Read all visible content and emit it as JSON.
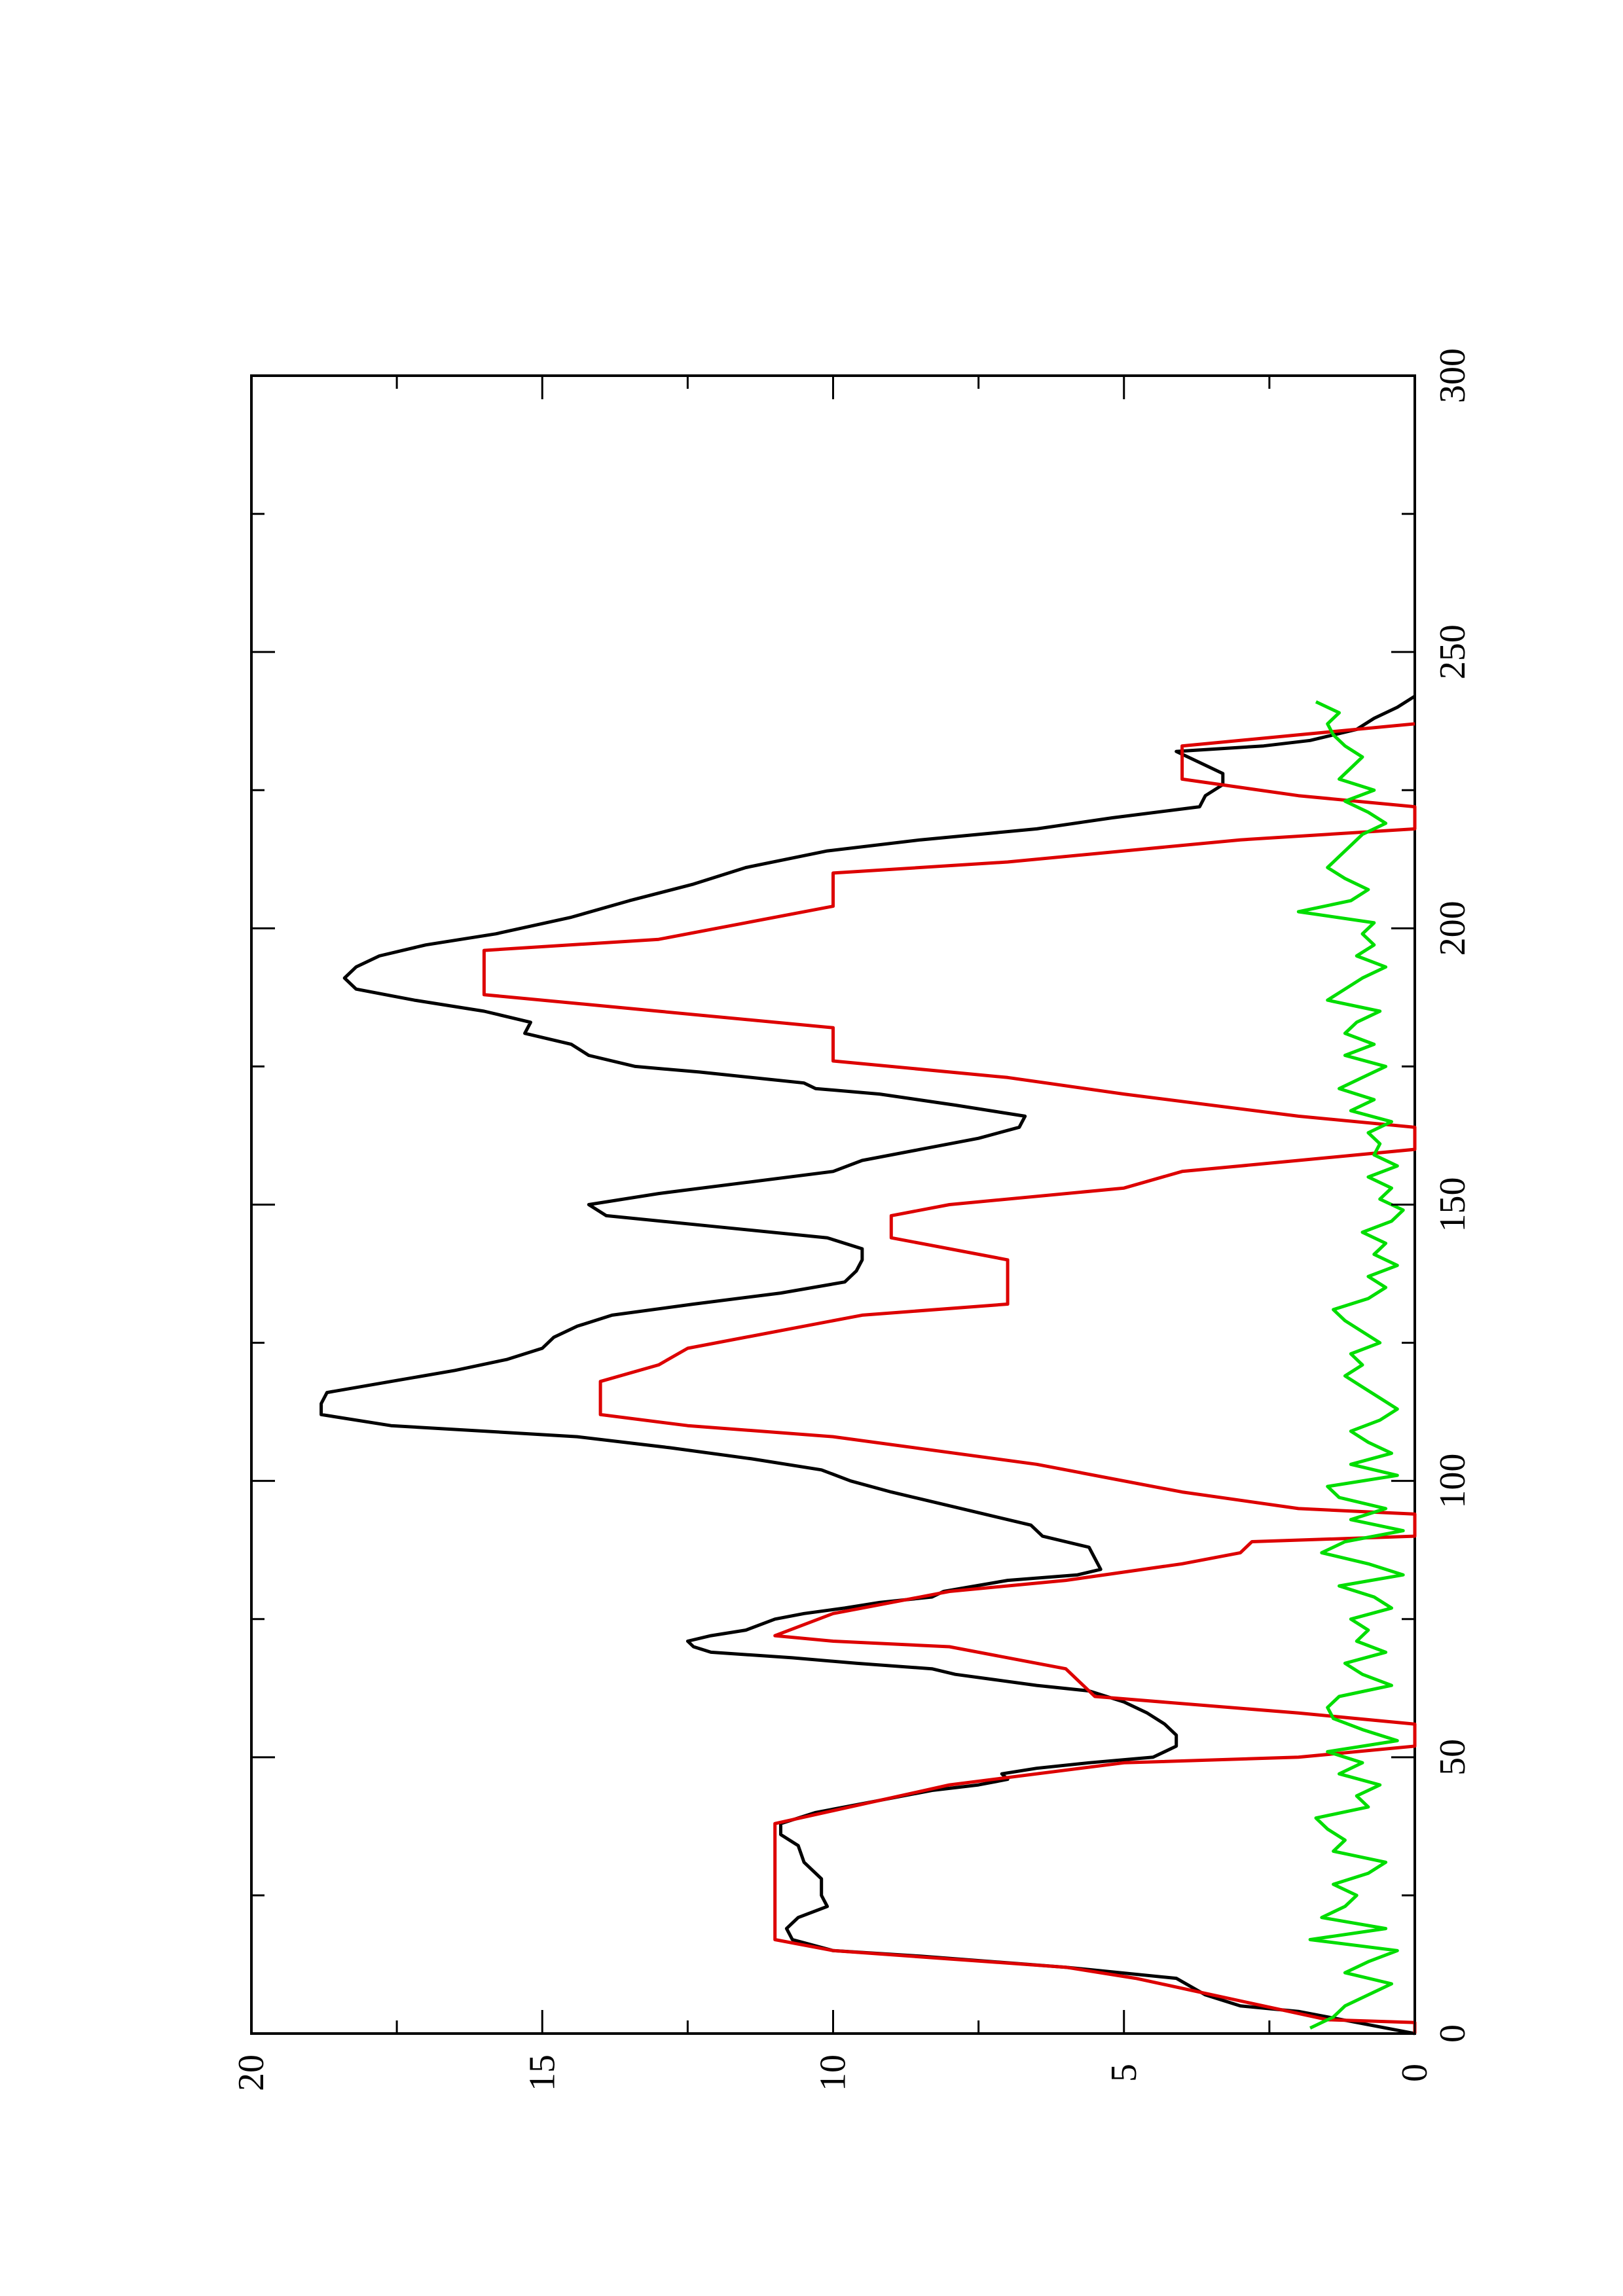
{
  "chart_data": {
    "type": "line",
    "orientation": "rotated-90-ccw",
    "title": "",
    "xlabel": "",
    "ylabel": "",
    "xlim": [
      0,
      300
    ],
    "ylim": [
      0,
      20
    ],
    "xticks": [
      0,
      50,
      100,
      150,
      200,
      250,
      300
    ],
    "yticks": [
      0,
      5,
      10,
      15,
      20
    ],
    "grid": false,
    "series": [
      {
        "color": "#000000",
        "points": [
          [
            0,
            0
          ],
          [
            2,
            1
          ],
          [
            4,
            2
          ],
          [
            5,
            3
          ],
          [
            7,
            3.6
          ],
          [
            10,
            4.1
          ],
          [
            12,
            6
          ],
          [
            14,
            8.5
          ],
          [
            15,
            10
          ],
          [
            17,
            10.7
          ],
          [
            19,
            10.8
          ],
          [
            21,
            10.6
          ],
          [
            23,
            10.1
          ],
          [
            25,
            10.2
          ],
          [
            28,
            10.2
          ],
          [
            31,
            10.5
          ],
          [
            34,
            10.6
          ],
          [
            36,
            10.9
          ],
          [
            38,
            10.9
          ],
          [
            40,
            10.3
          ],
          [
            42,
            9.3
          ],
          [
            44,
            8.3
          ],
          [
            45,
            7.5
          ],
          [
            46,
            7
          ],
          [
            47,
            7.1
          ],
          [
            48,
            6.5
          ],
          [
            49,
            5.6
          ],
          [
            50,
            4.5
          ],
          [
            52,
            4.1
          ],
          [
            54,
            4.1
          ],
          [
            56,
            4.3
          ],
          [
            58,
            4.6
          ],
          [
            60,
            5
          ],
          [
            62,
            5.6
          ],
          [
            63,
            6.5
          ],
          [
            64,
            7.2
          ],
          [
            65,
            7.9
          ],
          [
            66,
            8.3
          ],
          [
            67,
            9.6
          ],
          [
            68,
            10.7
          ],
          [
            69,
            12.1
          ],
          [
            70,
            12.4
          ],
          [
            71,
            12.5
          ],
          [
            72,
            12.1
          ],
          [
            73,
            11.5
          ],
          [
            75,
            11
          ],
          [
            76,
            10.5
          ],
          [
            77,
            9.8
          ],
          [
            78,
            9.2
          ],
          [
            79,
            8.3
          ],
          [
            80,
            8.1
          ],
          [
            82,
            7
          ],
          [
            83,
            5.8
          ],
          [
            84,
            5.4
          ],
          [
            86,
            5.5
          ],
          [
            88,
            5.6
          ],
          [
            90,
            6.4
          ],
          [
            92,
            6.6
          ],
          [
            94,
            7.4
          ],
          [
            96,
            8.2
          ],
          [
            98,
            9
          ],
          [
            100,
            9.7
          ],
          [
            102,
            10.2
          ],
          [
            104,
            11.4
          ],
          [
            106,
            12.8
          ],
          [
            108,
            14.4
          ],
          [
            110,
            17.6
          ],
          [
            112,
            18.8
          ],
          [
            114,
            18.8
          ],
          [
            116,
            18.7
          ],
          [
            118,
            17.6
          ],
          [
            120,
            16.5
          ],
          [
            122,
            15.6
          ],
          [
            124,
            15
          ],
          [
            126,
            14.8
          ],
          [
            128,
            14.4
          ],
          [
            130,
            13.8
          ],
          [
            132,
            12.4
          ],
          [
            134,
            10.9
          ],
          [
            136,
            9.8
          ],
          [
            138,
            9.6
          ],
          [
            140,
            9.5
          ],
          [
            142,
            9.5
          ],
          [
            144,
            10.1
          ],
          [
            146,
            12
          ],
          [
            148,
            13.9
          ],
          [
            150,
            14.2
          ],
          [
            152,
            13
          ],
          [
            154,
            11.5
          ],
          [
            156,
            10
          ],
          [
            158,
            9.5
          ],
          [
            160,
            8.5
          ],
          [
            162,
            7.5
          ],
          [
            164,
            6.8
          ],
          [
            166,
            6.7
          ],
          [
            168,
            7.9
          ],
          [
            170,
            9.2
          ],
          [
            171,
            10.3
          ],
          [
            172,
            10.5
          ],
          [
            174,
            12.3
          ],
          [
            175,
            13.4
          ],
          [
            177,
            14.2
          ],
          [
            179,
            14.5
          ],
          [
            181,
            15.3
          ],
          [
            183,
            15.2
          ],
          [
            185,
            16
          ],
          [
            187,
            17.2
          ],
          [
            189,
            18.2
          ],
          [
            191,
            18.4
          ],
          [
            193,
            18.2
          ],
          [
            195,
            17.8
          ],
          [
            197,
            17
          ],
          [
            199,
            15.8
          ],
          [
            202,
            14.5
          ],
          [
            205,
            13.5
          ],
          [
            208,
            12.4
          ],
          [
            211,
            11.5
          ],
          [
            214,
            10.1
          ],
          [
            216,
            8.5
          ],
          [
            218,
            6.5
          ],
          [
            220,
            5.2
          ],
          [
            222,
            3.7
          ],
          [
            224,
            3.6
          ],
          [
            226,
            3.3
          ],
          [
            228,
            3.3
          ],
          [
            230,
            3.7
          ],
          [
            232,
            4.1
          ],
          [
            233,
            2.6
          ],
          [
            234,
            1.8
          ],
          [
            236,
            1
          ],
          [
            238,
            0.7
          ],
          [
            240,
            0.3
          ],
          [
            242,
            0
          ]
        ]
      },
      {
        "color": "#dd0000",
        "points": [
          [
            0,
            0
          ],
          [
            2,
            0
          ],
          [
            2.5,
            1.5
          ],
          [
            10,
            4.8
          ],
          [
            12,
            6
          ],
          [
            15,
            10
          ],
          [
            17,
            11
          ],
          [
            36,
            11
          ],
          [
            38,
            11
          ],
          [
            45,
            8
          ],
          [
            49,
            5
          ],
          [
            50,
            2
          ],
          [
            52,
            0
          ],
          [
            56,
            0
          ],
          [
            58,
            2
          ],
          [
            61,
            5.5
          ],
          [
            66,
            6
          ],
          [
            70,
            8
          ],
          [
            71,
            10
          ],
          [
            72,
            11
          ],
          [
            76,
            10
          ],
          [
            77,
            9.5
          ],
          [
            80,
            8
          ],
          [
            82,
            6
          ],
          [
            85,
            4
          ],
          [
            87,
            3
          ],
          [
            89,
            2.8
          ],
          [
            90,
            0
          ],
          [
            94,
            0
          ],
          [
            95,
            2
          ],
          [
            98,
            4
          ],
          [
            103,
            6.5
          ],
          [
            108,
            10
          ],
          [
            110,
            12.5
          ],
          [
            112,
            14
          ],
          [
            118,
            14
          ],
          [
            121,
            13
          ],
          [
            124,
            12.5
          ],
          [
            130,
            9.5
          ],
          [
            132,
            7
          ],
          [
            140,
            7
          ],
          [
            142,
            8
          ],
          [
            144,
            9
          ],
          [
            148,
            9
          ],
          [
            150,
            8
          ],
          [
            153,
            5
          ],
          [
            156,
            4
          ],
          [
            158,
            2
          ],
          [
            160,
            0
          ],
          [
            164,
            0
          ],
          [
            166,
            2
          ],
          [
            170,
            5
          ],
          [
            173,
            7
          ],
          [
            176,
            10
          ],
          [
            182,
            10
          ],
          [
            185,
            13
          ],
          [
            188,
            16
          ],
          [
            196,
            16
          ],
          [
            198,
            13
          ],
          [
            201,
            11.5
          ],
          [
            204,
            10
          ],
          [
            210,
            10
          ],
          [
            212,
            7
          ],
          [
            214,
            5
          ],
          [
            216,
            3
          ],
          [
            218,
            0
          ],
          [
            222,
            0
          ],
          [
            224,
            2
          ],
          [
            227,
            4
          ],
          [
            233,
            4
          ],
          [
            235,
            2
          ],
          [
            237,
            0
          ]
        ]
      },
      {
        "color": "#00dd00",
        "points": [
          [
            1,
            1.8
          ],
          [
            3,
            1.4
          ],
          [
            5,
            1.2
          ],
          [
            7,
            0.8
          ],
          [
            9,
            0.4
          ],
          [
            11,
            1.2
          ],
          [
            13,
            0.8
          ],
          [
            15,
            0.3
          ],
          [
            17,
            1.8
          ],
          [
            19,
            0.5
          ],
          [
            21,
            1.6
          ],
          [
            23,
            1.2
          ],
          [
            25,
            1
          ],
          [
            27,
            1.4
          ],
          [
            29,
            0.8
          ],
          [
            31,
            0.5
          ],
          [
            33,
            1.4
          ],
          [
            35,
            1.2
          ],
          [
            37,
            1.5
          ],
          [
            39,
            1.7
          ],
          [
            41,
            0.8
          ],
          [
            43,
            1
          ],
          [
            45,
            0.6
          ],
          [
            47,
            1.3
          ],
          [
            49,
            0.9
          ],
          [
            51,
            1.5
          ],
          [
            53,
            0.3
          ],
          [
            55,
            0.9
          ],
          [
            57,
            1.4
          ],
          [
            59,
            1.5
          ],
          [
            61,
            1.3
          ],
          [
            63,
            0.4
          ],
          [
            65,
            0.9
          ],
          [
            67,
            1.2
          ],
          [
            69,
            0.5
          ],
          [
            71,
            1
          ],
          [
            73,
            0.8
          ],
          [
            75,
            1.1
          ],
          [
            77,
            0.4
          ],
          [
            79,
            0.7
          ],
          [
            81,
            1.3
          ],
          [
            83,
            0.2
          ],
          [
            85,
            0.8
          ],
          [
            87,
            1.6
          ],
          [
            89,
            1.2
          ],
          [
            91,
            0.2
          ],
          [
            93,
            1.1
          ],
          [
            95,
            0.5
          ],
          [
            97,
            1.3
          ],
          [
            99,
            1.5
          ],
          [
            101,
            0.3
          ],
          [
            103,
            1.1
          ],
          [
            105,
            0.4
          ],
          [
            107,
            0.8
          ],
          [
            109,
            1.1
          ],
          [
            111,
            0.6
          ],
          [
            113,
            0.3
          ],
          [
            115,
            0.6
          ],
          [
            117,
            0.9
          ],
          [
            119,
            1.2
          ],
          [
            121,
            0.9
          ],
          [
            123,
            1.1
          ],
          [
            125,
            0.6
          ],
          [
            127,
            0.9
          ],
          [
            129,
            1.2
          ],
          [
            131,
            1.4
          ],
          [
            133,
            0.8
          ],
          [
            135,
            0.5
          ],
          [
            137,
            0.8
          ],
          [
            139,
            0.3
          ],
          [
            141,
            0.7
          ],
          [
            143,
            0.5
          ],
          [
            145,
            0.9
          ],
          [
            147,
            0.4
          ],
          [
            149,
            0.2
          ],
          [
            151,
            0.6
          ],
          [
            153,
            0.4
          ],
          [
            155,
            0.8
          ],
          [
            157,
            0.3
          ],
          [
            159,
            0.7
          ],
          [
            161,
            0.6
          ],
          [
            163,
            0.8
          ],
          [
            165,
            0.4
          ],
          [
            167,
            1.1
          ],
          [
            169,
            0.7
          ],
          [
            171,
            1.3
          ],
          [
            173,
            0.9
          ],
          [
            175,
            0.5
          ],
          [
            177,
            1.2
          ],
          [
            179,
            0.7
          ],
          [
            181,
            1.2
          ],
          [
            183,
            1
          ],
          [
            185,
            0.6
          ],
          [
            187,
            1.5
          ],
          [
            189,
            1.2
          ],
          [
            191,
            0.9
          ],
          [
            193,
            0.5
          ],
          [
            195,
            1
          ],
          [
            197,
            0.7
          ],
          [
            199,
            0.9
          ],
          [
            201,
            0.7
          ],
          [
            203,
            2
          ],
          [
            205,
            1.1
          ],
          [
            207,
            0.8
          ],
          [
            209,
            1.2
          ],
          [
            211,
            1.5
          ],
          [
            213,
            1.3
          ],
          [
            215,
            1.1
          ],
          [
            217,
            0.9
          ],
          [
            219,
            0.5
          ],
          [
            221,
            0.8
          ],
          [
            223,
            1.2
          ],
          [
            225,
            0.7
          ],
          [
            227,
            1.3
          ],
          [
            229,
            1.1
          ],
          [
            231,
            0.9
          ],
          [
            233,
            1.2
          ],
          [
            235,
            1.4
          ],
          [
            237,
            1.5
          ],
          [
            239,
            1.3
          ],
          [
            241,
            1.7
          ]
        ]
      }
    ]
  }
}
